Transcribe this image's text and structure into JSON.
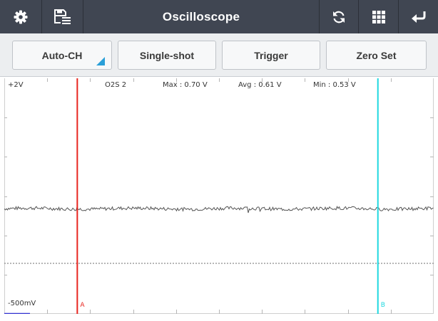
{
  "header": {
    "title": "Oscilloscope",
    "background": "#404652",
    "left_icons": [
      "gear-icon",
      "save-list-icon"
    ],
    "right_icons": [
      "refresh-icon",
      "grid-icon",
      "return-icon"
    ]
  },
  "toolbar": {
    "buttons": [
      {
        "label": "Auto-CH",
        "has_dropdown_corner": true
      },
      {
        "label": "Single-shot"
      },
      {
        "label": "Trigger"
      },
      {
        "label": "Zero Set"
      }
    ],
    "accent": "#2a9fd8"
  },
  "scope": {
    "y_top_label": "+2V",
    "y_bottom_label": "-500mV",
    "channel_name": "O2S 2",
    "max_label": "Max : 0.70 V",
    "avg_label": "Avg : 0.61 V",
    "min_label": "Min : 0.53 V",
    "y_range": [
      -0.5,
      2.0
    ],
    "signal_mean_v": 0.61,
    "signal_max_v": 0.7,
    "signal_min_v": 0.53,
    "reference_line_v": 0.0,
    "cursor_a": {
      "label": "A",
      "color": "#e8251f",
      "position_fraction": 0.17
    },
    "cursor_b": {
      "label": "B",
      "color": "#20d8e0",
      "position_fraction": 0.87
    },
    "trace_color": "#555555",
    "grid": "tick-marks"
  }
}
